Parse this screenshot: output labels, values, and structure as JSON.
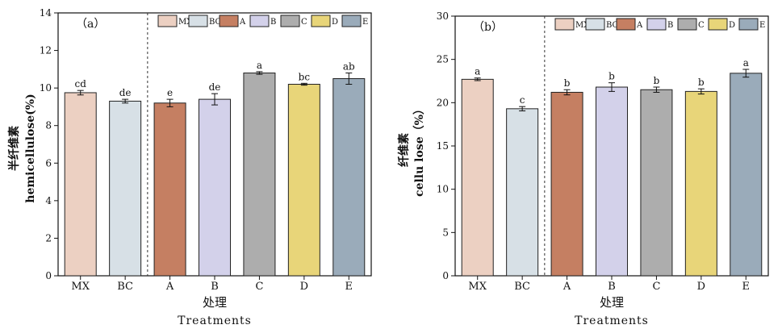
{
  "chart_data": [
    {
      "type": "bar",
      "panel_label": "（a）",
      "categories": [
        "MX",
        "BC",
        "A",
        "B",
        "C",
        "D",
        "E"
      ],
      "values": [
        9.75,
        9.3,
        9.2,
        9.4,
        10.8,
        10.2,
        10.5
      ],
      "errors": [
        0.12,
        0.1,
        0.2,
        0.3,
        0.07,
        0.05,
        0.3
      ],
      "significance": [
        "cd",
        "de",
        "e",
        "de",
        "a",
        "bc",
        "ab"
      ],
      "colors": [
        "#ecd0c2",
        "#d7e0e6",
        "#c57f62",
        "#d3d1ea",
        "#adadad",
        "#e8d579",
        "#9aabba"
      ],
      "ylim": [
        0,
        14
      ],
      "yticks": [
        0,
        2,
        4,
        6,
        8,
        10,
        12,
        14
      ],
      "ylabel_zh": "半纤维素",
      "ylabel_en": "hemicellulose(%)",
      "xlabel_zh": "处理",
      "xlabel_en": "Treatments",
      "legend": [
        "MX",
        "BC",
        "A",
        "B",
        "C",
        "D",
        "E"
      ],
      "legend_position": "top-right",
      "divider_after_category": "BC",
      "grid": false
    },
    {
      "type": "bar",
      "panel_label": "（b）",
      "categories": [
        "MX",
        "BC",
        "A",
        "B",
        "C",
        "D",
        "E"
      ],
      "values": [
        22.7,
        19.3,
        21.2,
        21.8,
        21.5,
        21.3,
        23.4
      ],
      "errors": [
        0.15,
        0.25,
        0.3,
        0.5,
        0.3,
        0.3,
        0.45
      ],
      "significance": [
        "a",
        "c",
        "b",
        "b",
        "b",
        "b",
        "a"
      ],
      "colors": [
        "#ecd0c2",
        "#d7e0e6",
        "#c57f62",
        "#d3d1ea",
        "#adadad",
        "#e8d579",
        "#9aabba"
      ],
      "ylim": [
        0,
        30
      ],
      "yticks": [
        0,
        5,
        10,
        15,
        20,
        25,
        30
      ],
      "ylabel_zh": "纤维素",
      "ylabel_en": "cellu lose（%）",
      "xlabel_zh": "处理",
      "xlabel_en": "Treatments",
      "legend": [
        "MX",
        "BC",
        "A",
        "B",
        "C",
        "D",
        "E"
      ],
      "legend_position": "top-right",
      "divider_after_category": "BC",
      "grid": false
    }
  ]
}
